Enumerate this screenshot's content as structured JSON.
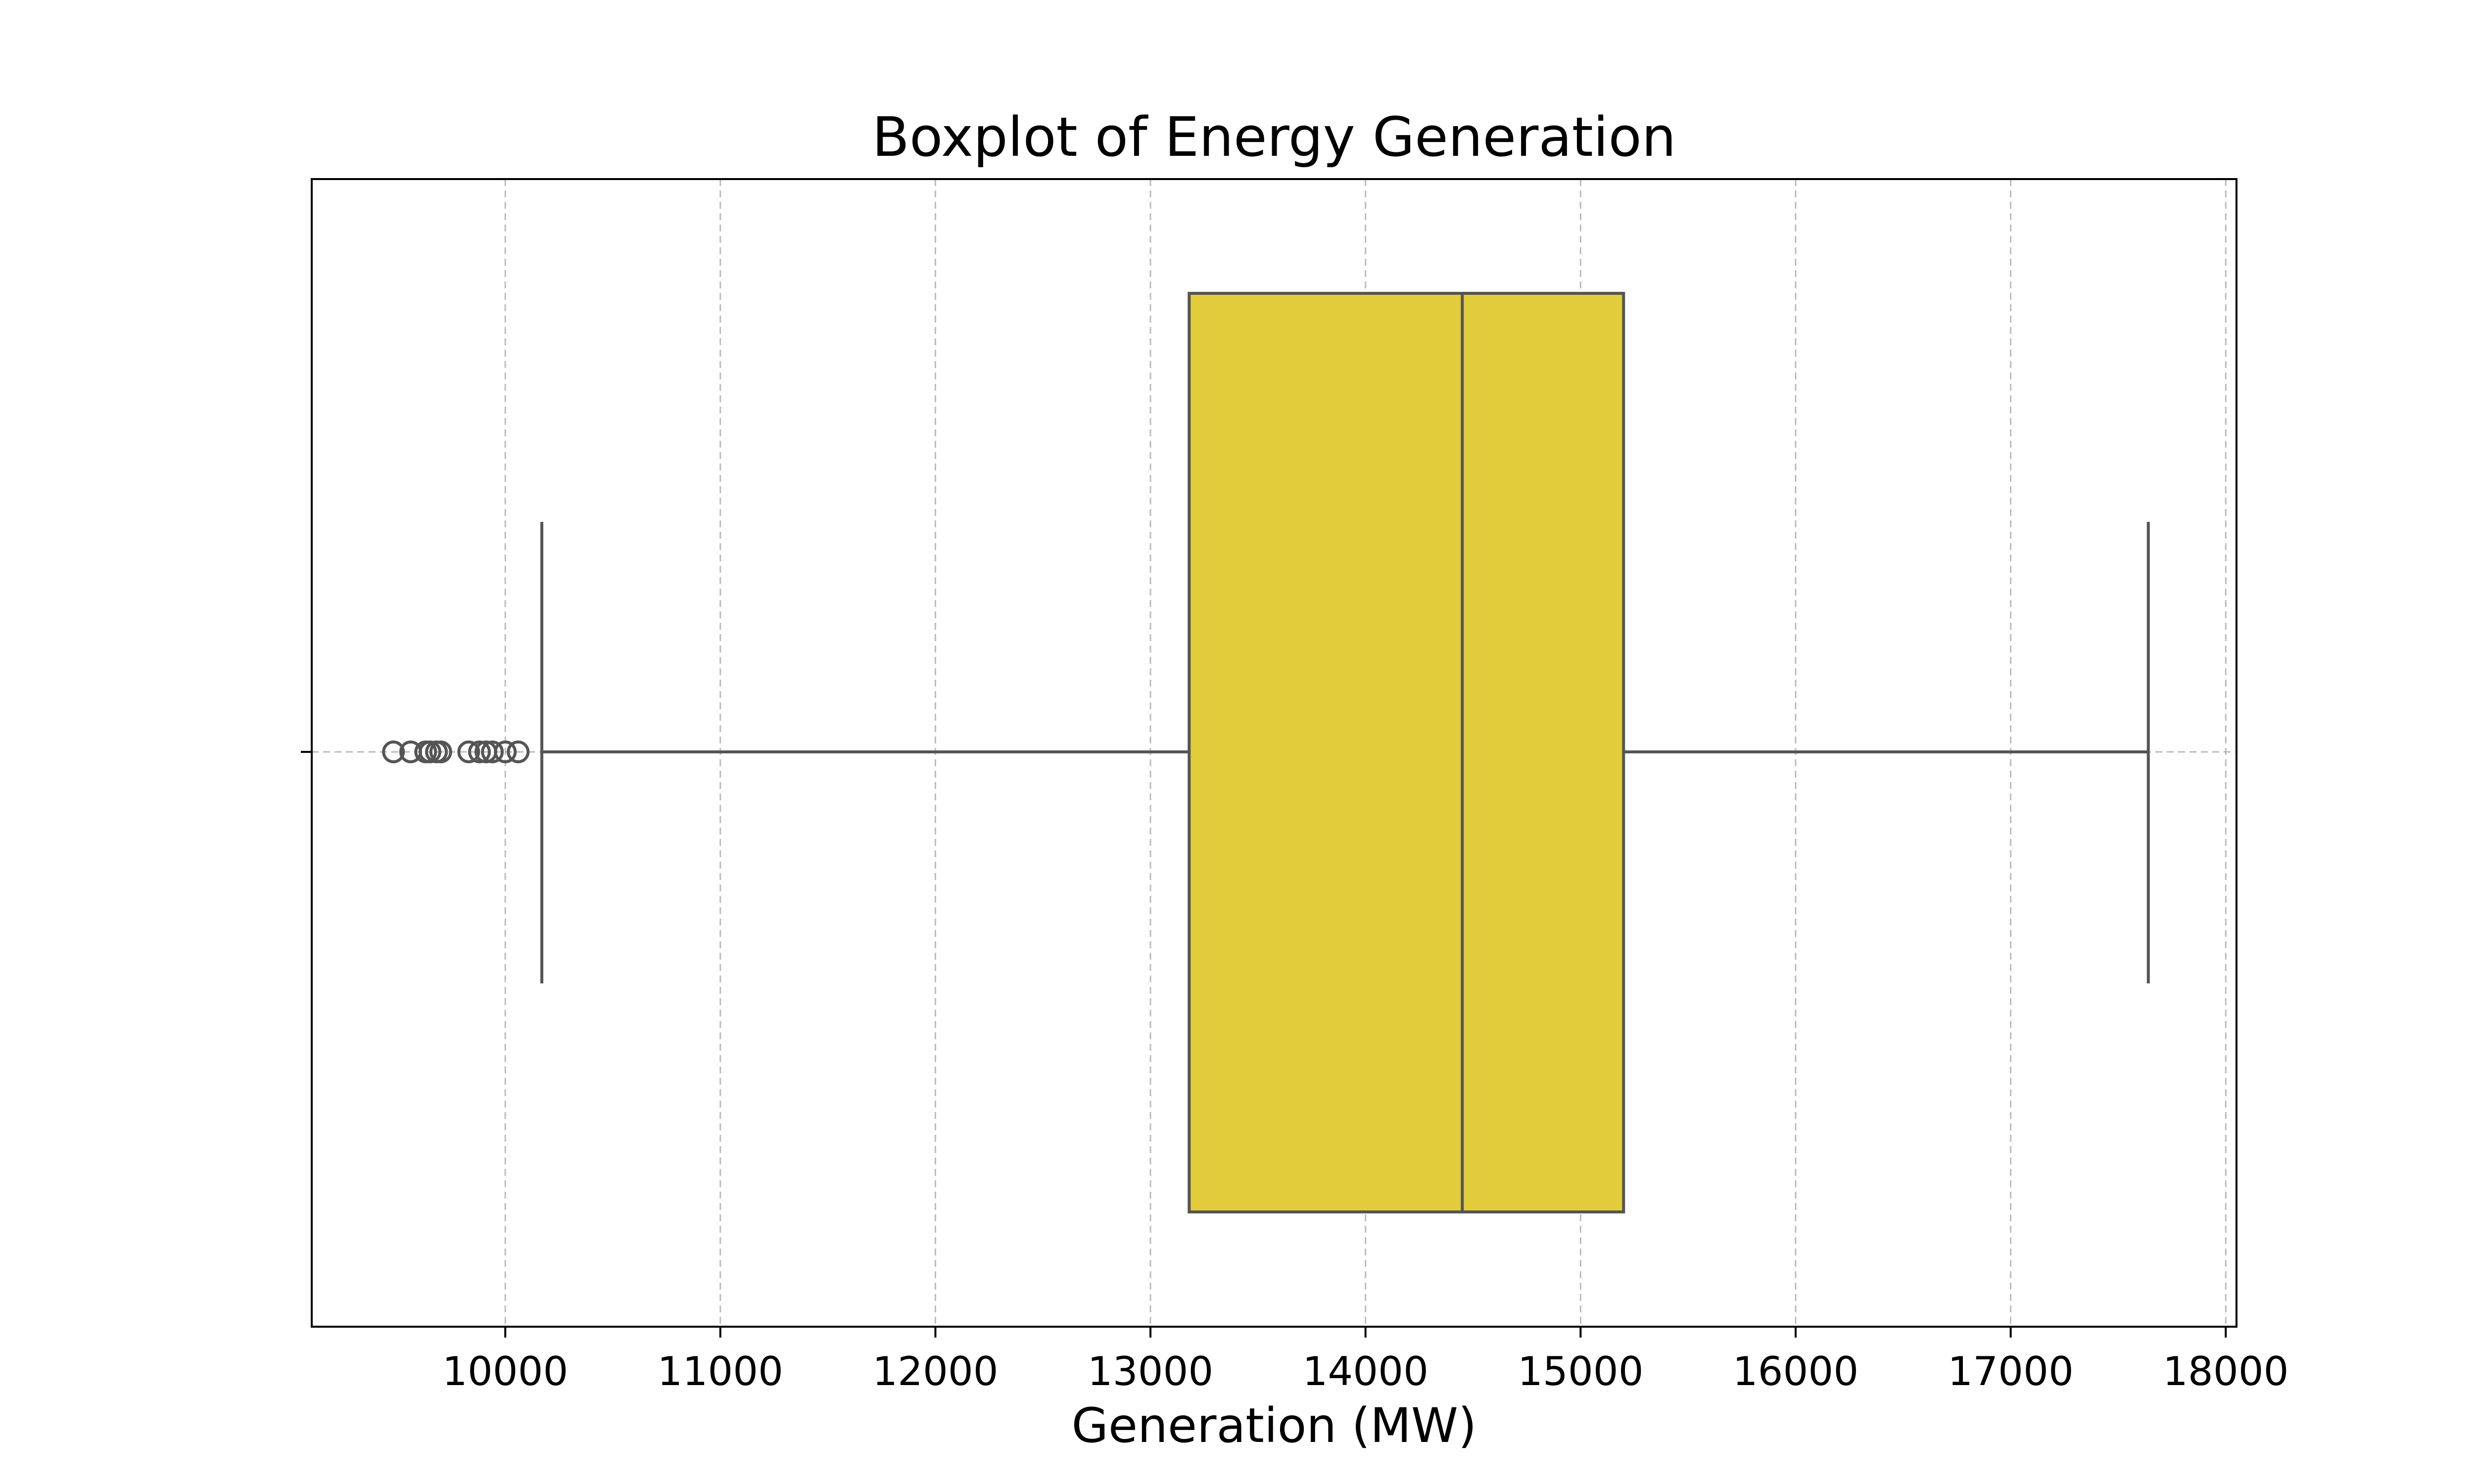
{
  "chart_data": {
    "type": "box",
    "title": "Boxplot of Energy Generation",
    "xlabel": "Generation (MW)",
    "ylabel": "",
    "xlim": [
      9100,
      18050
    ],
    "xticks": [
      10000,
      11000,
      12000,
      13000,
      14000,
      15000,
      16000,
      17000,
      18000
    ],
    "xtick_labels": [
      "10000",
      "11000",
      "12000",
      "13000",
      "14000",
      "15000",
      "16000",
      "17000",
      "18000"
    ],
    "grid": true,
    "box_color": "#e1cd3c",
    "edge_color": "#555555",
    "box": {
      "q1": 13180,
      "median": 14450,
      "q3": 15200,
      "whisker_low": 10170,
      "whisker_high": 17640
    },
    "outliers": [
      9480,
      9560,
      9630,
      9650,
      9680,
      9700,
      9830,
      9880,
      9910,
      9940,
      10000,
      10060
    ]
  }
}
